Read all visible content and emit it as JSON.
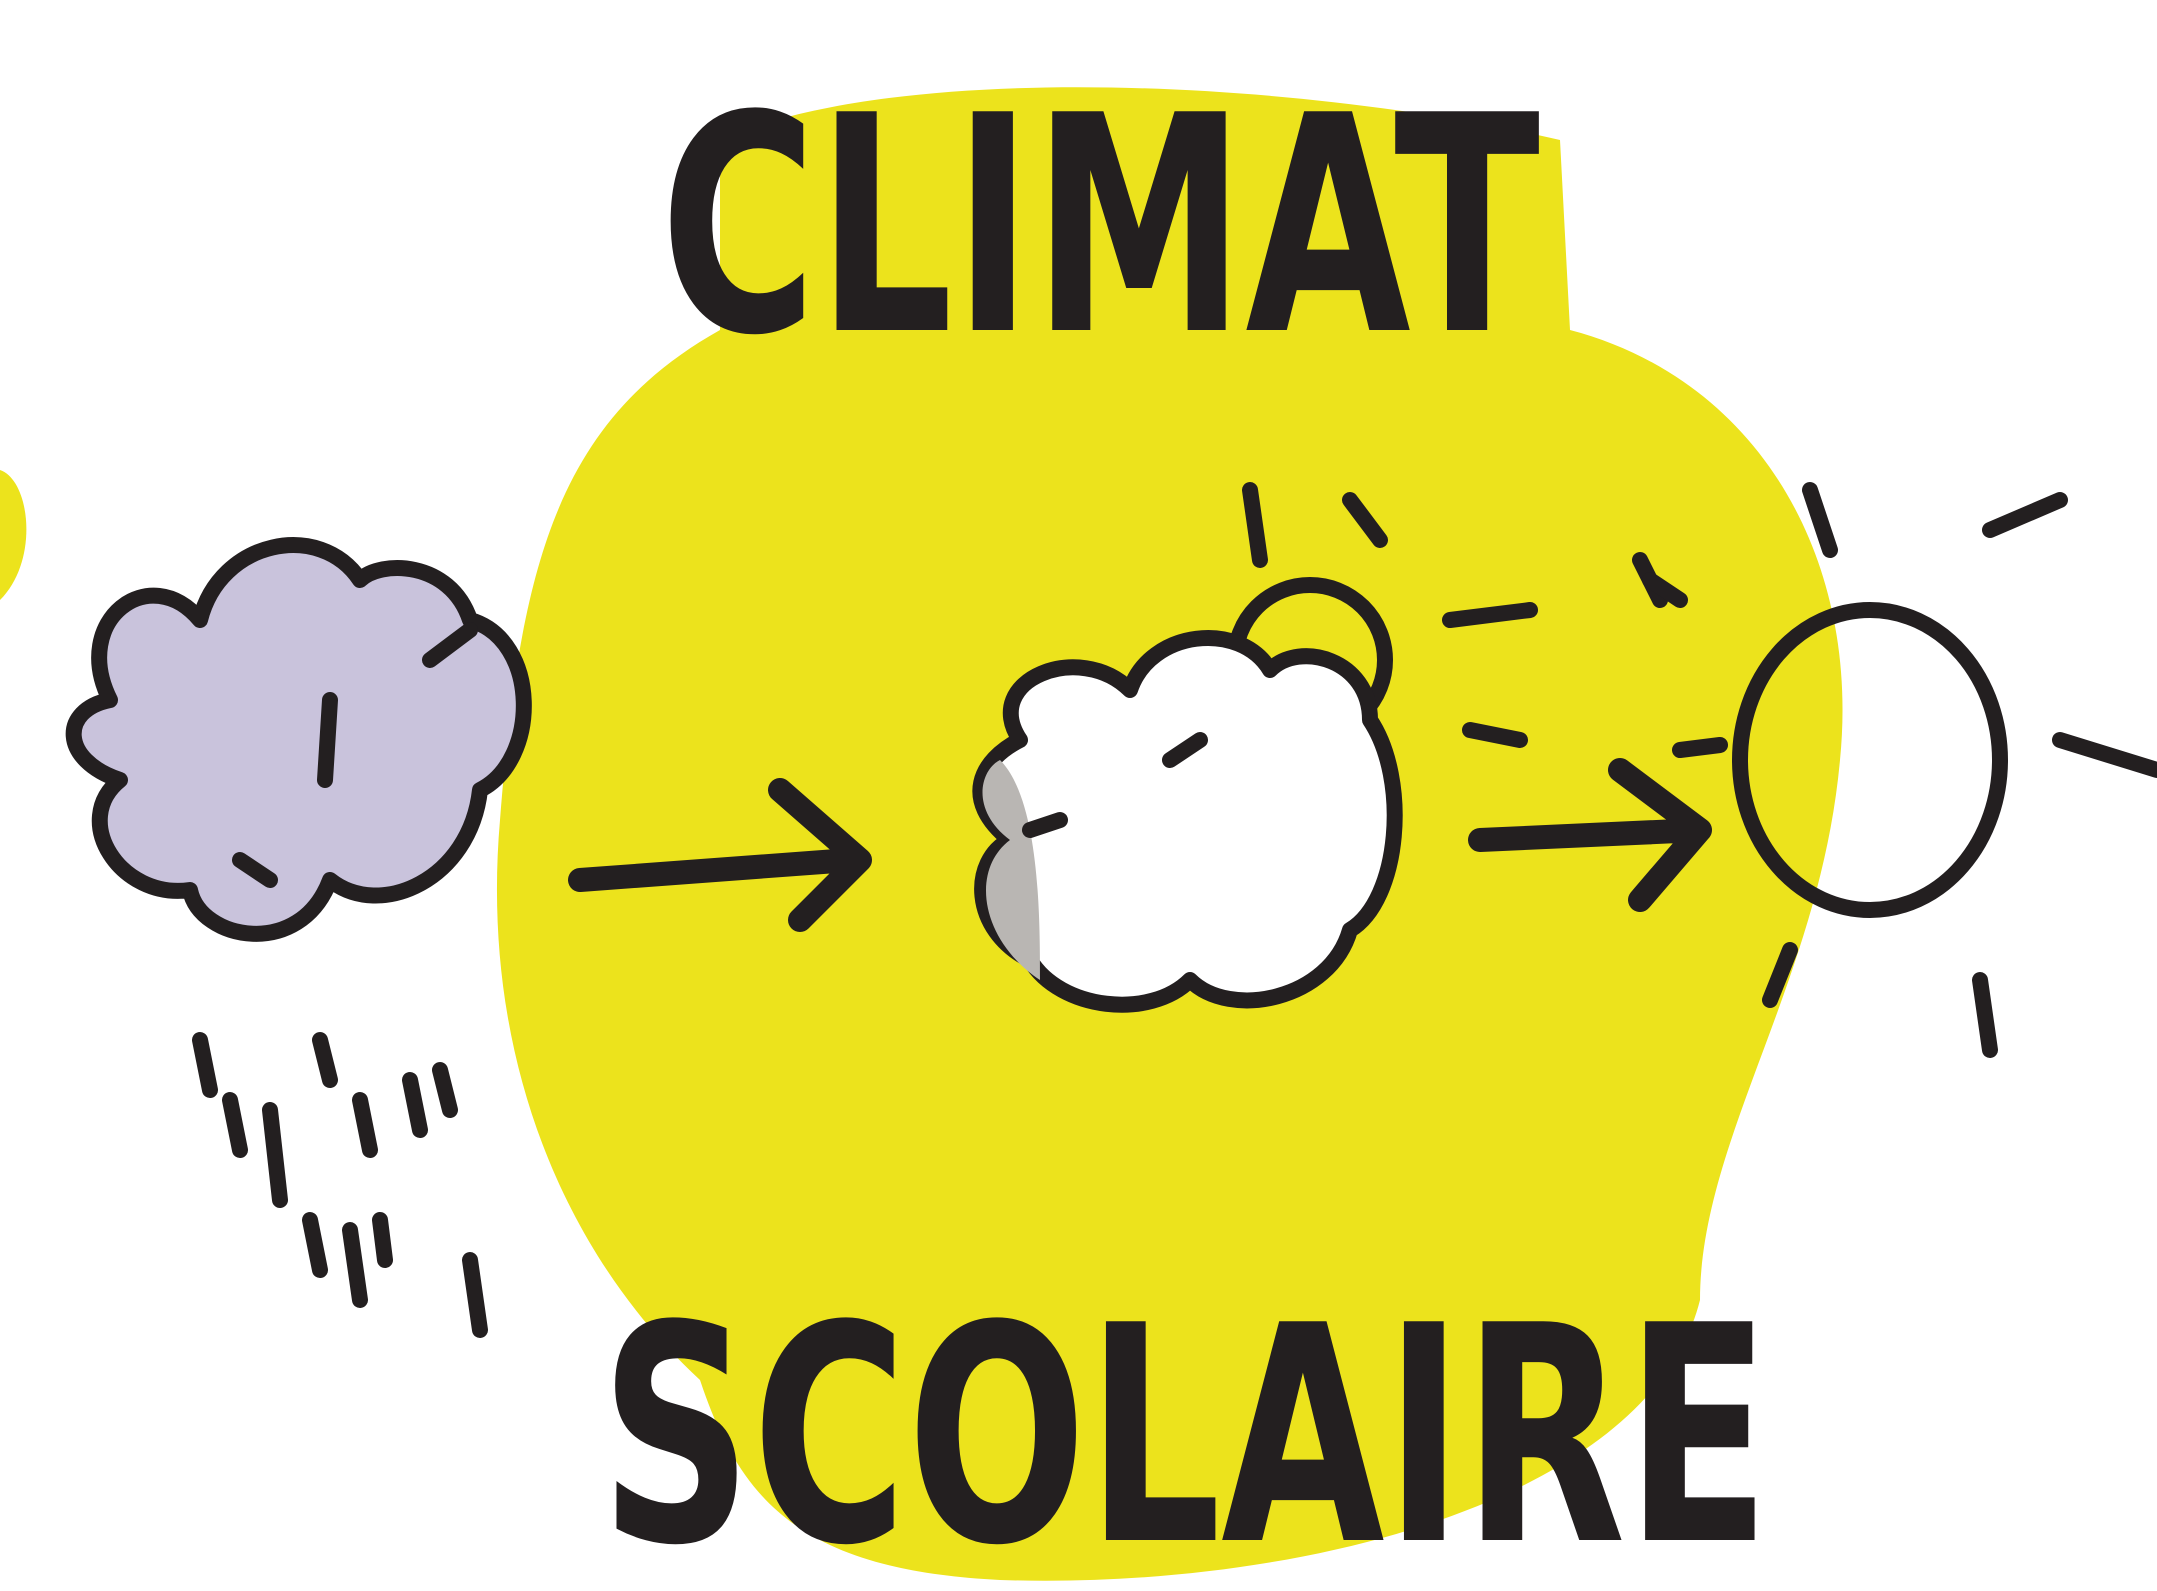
{
  "title": "CLIMAT",
  "subtitle": "SCOLAIRE"
}
